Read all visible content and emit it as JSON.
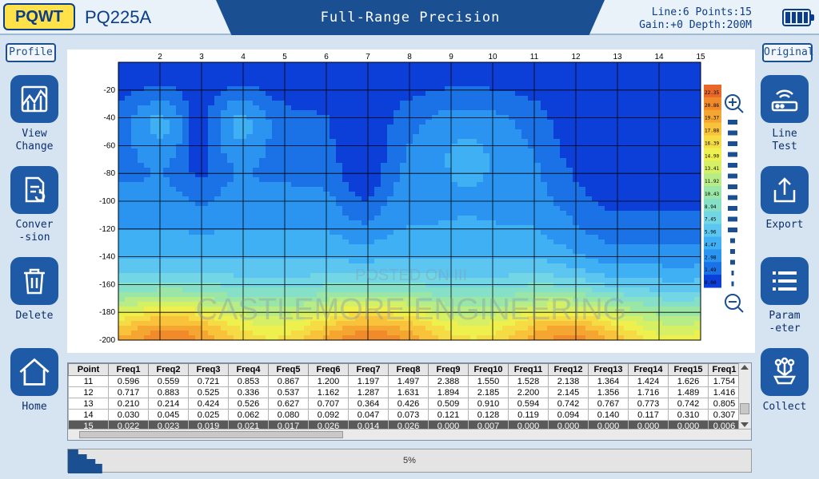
{
  "header": {
    "brand": "PQWT",
    "model": "PQ225A",
    "title": "Full-Range Precision",
    "status_line1": "Line:6 Points:15",
    "status_line2": "Gain:+0 Depth:200M"
  },
  "tags": {
    "left": "Profile",
    "right": "Original"
  },
  "left_buttons": [
    {
      "label1": "View",
      "label2": "Change"
    },
    {
      "label1": "Conver",
      "label2": "-sion"
    },
    {
      "label1": "Delete",
      "label2": ""
    },
    {
      "label1": "Home",
      "label2": ""
    }
  ],
  "right_buttons": [
    {
      "label1": "Line",
      "label2": "Test"
    },
    {
      "label1": "Export",
      "label2": ""
    },
    {
      "label1": "Param",
      "label2": "-eter"
    },
    {
      "label1": "Collect",
      "label2": ""
    }
  ],
  "chart_data": {
    "type": "heatmap",
    "x_ticks": [
      "2",
      "3",
      "4",
      "5",
      "6",
      "7",
      "8",
      "9",
      "10",
      "11",
      "12",
      "13",
      "14",
      "15"
    ],
    "y_ticks": [
      "-20",
      "-40",
      "-60",
      "-80",
      "-100",
      "-120",
      "-140",
      "-160",
      "-180",
      "-200"
    ],
    "xlim": [
      1,
      15
    ],
    "ylim": [
      -200,
      0
    ],
    "colorbar_labels": [
      "22.35",
      "20.86",
      "19.37",
      "17.88",
      "16.39",
      "14.90",
      "13.41",
      "11.92",
      "10.43",
      "8.94",
      "7.45",
      "5.96",
      "4.47",
      "2.98",
      "1.49",
      "0.00"
    ],
    "colorbar_colors": [
      "#e8682a",
      "#f08a2a",
      "#f5a630",
      "#f8c23a",
      "#f6dc44",
      "#eef04e",
      "#d6f066",
      "#b8ec86",
      "#9ae6a6",
      "#86e0c8",
      "#72d6e4",
      "#5cc6f0",
      "#40b0f4",
      "#2a94f0",
      "#1a72e6",
      "#0b3fd8"
    ],
    "grid": true,
    "watermark_line1": "POSTED ON III",
    "watermark_line2": "CASTLEMORE ENGINEERING"
  },
  "table": {
    "columns": [
      "Point",
      "Freq1",
      "Freq2",
      "Freq3",
      "Freq4",
      "Freq5",
      "Freq6",
      "Freq7",
      "Freq8",
      "Freq9",
      "Freq10",
      "Freq11",
      "Freq12",
      "Freq13",
      "Freq14",
      "Freq15",
      "Freq1"
    ],
    "rows": [
      [
        "11",
        "0.596",
        "0.559",
        "0.721",
        "0.853",
        "0.867",
        "1.200",
        "1.197",
        "1.497",
        "2.388",
        "1.550",
        "1.528",
        "2.138",
        "1.364",
        "1.424",
        "1.626",
        "1.754"
      ],
      [
        "12",
        "0.717",
        "0.883",
        "0.525",
        "0.336",
        "0.537",
        "1.162",
        "1.287",
        "1.631",
        "1.894",
        "2.185",
        "2.200",
        "2.145",
        "1.356",
        "1.716",
        "1.489",
        "1.416"
      ],
      [
        "13",
        "0.210",
        "0.214",
        "0.424",
        "0.526",
        "0.627",
        "0.707",
        "0.364",
        "0.426",
        "0.509",
        "0.910",
        "0.594",
        "0.742",
        "0.767",
        "0.773",
        "0.742",
        "0.805"
      ],
      [
        "14",
        "0.030",
        "0.045",
        "0.025",
        "0.062",
        "0.080",
        "0.092",
        "0.047",
        "0.073",
        "0.121",
        "0.128",
        "0.119",
        "0.094",
        "0.140",
        "0.117",
        "0.310",
        "0.307"
      ],
      [
        "15",
        "0.022",
        "0.023",
        "0.019",
        "0.021",
        "0.017",
        "0.026",
        "0.014",
        "0.026",
        "0.000",
        "0.007",
        "0.000",
        "0.000",
        "0.000",
        "0.000",
        "0.000",
        "0.006"
      ]
    ]
  },
  "progress": {
    "label": "5%",
    "value": 0.05
  }
}
